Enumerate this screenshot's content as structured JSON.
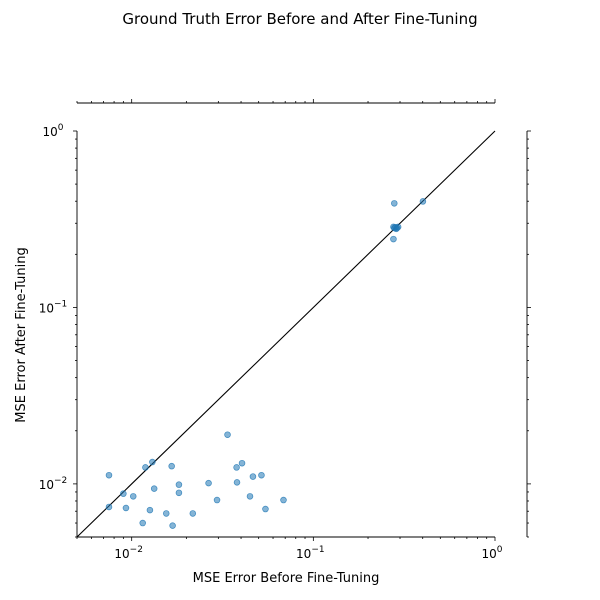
{
  "chart_data": {
    "type": "scatter",
    "title": "Ground Truth Error Before and After Fine-Tuning",
    "xlabel": "MSE Error Before Fine-Tuning",
    "ylabel": "MSE Error After Fine-Tuning",
    "x_scale": "log",
    "y_scale": "log",
    "xlim": [
      0.005,
      1.0
    ],
    "ylim": [
      0.005,
      1.0
    ],
    "x_ticks": [
      {
        "value": 0.01,
        "base": "10",
        "exp": "−2"
      },
      {
        "value": 0.1,
        "base": "10",
        "exp": "−1"
      },
      {
        "value": 1,
        "base": "10",
        "exp": "0"
      }
    ],
    "y_ticks": [
      {
        "value": 0.01,
        "base": "10",
        "exp": "−2"
      },
      {
        "value": 0.1,
        "base": "10",
        "exp": "−1"
      },
      {
        "value": 1,
        "base": "10",
        "exp": "0"
      }
    ],
    "reference_line": {
      "label": "y = x",
      "color": "#000000"
    },
    "marker_color": "#1f77b4",
    "marker_alpha": 0.55,
    "grid": false,
    "points": [
      {
        "x": 0.0075,
        "y": 0.0112
      },
      {
        "x": 0.0075,
        "y": 0.0074
      },
      {
        "x": 0.009,
        "y": 0.0088
      },
      {
        "x": 0.0093,
        "y": 0.0073
      },
      {
        "x": 0.0102,
        "y": 0.0085
      },
      {
        "x": 0.0115,
        "y": 0.006
      },
      {
        "x": 0.0119,
        "y": 0.0124
      },
      {
        "x": 0.0126,
        "y": 0.0071
      },
      {
        "x": 0.013,
        "y": 0.0133
      },
      {
        "x": 0.0133,
        "y": 0.0094
      },
      {
        "x": 0.0155,
        "y": 0.0068
      },
      {
        "x": 0.0166,
        "y": 0.0126
      },
      {
        "x": 0.0168,
        "y": 0.0058
      },
      {
        "x": 0.0182,
        "y": 0.0089
      },
      {
        "x": 0.0182,
        "y": 0.0099
      },
      {
        "x": 0.0217,
        "y": 0.0068
      },
      {
        "x": 0.0265,
        "y": 0.0101
      },
      {
        "x": 0.0295,
        "y": 0.0081
      },
      {
        "x": 0.0337,
        "y": 0.019
      },
      {
        "x": 0.0378,
        "y": 0.0124
      },
      {
        "x": 0.038,
        "y": 0.0102
      },
      {
        "x": 0.0405,
        "y": 0.0131
      },
      {
        "x": 0.0448,
        "y": 0.0085
      },
      {
        "x": 0.0465,
        "y": 0.011
      },
      {
        "x": 0.0518,
        "y": 0.0112
      },
      {
        "x": 0.0545,
        "y": 0.0072
      },
      {
        "x": 0.0685,
        "y": 0.0081
      },
      {
        "x": 0.279,
        "y": 0.389
      },
      {
        "x": 0.276,
        "y": 0.244
      },
      {
        "x": 0.279,
        "y": 0.282
      },
      {
        "x": 0.283,
        "y": 0.285
      },
      {
        "x": 0.289,
        "y": 0.282
      },
      {
        "x": 0.286,
        "y": 0.279
      },
      {
        "x": 0.276,
        "y": 0.286
      },
      {
        "x": 0.293,
        "y": 0.286
      },
      {
        "x": 0.401,
        "y": 0.399
      }
    ]
  }
}
